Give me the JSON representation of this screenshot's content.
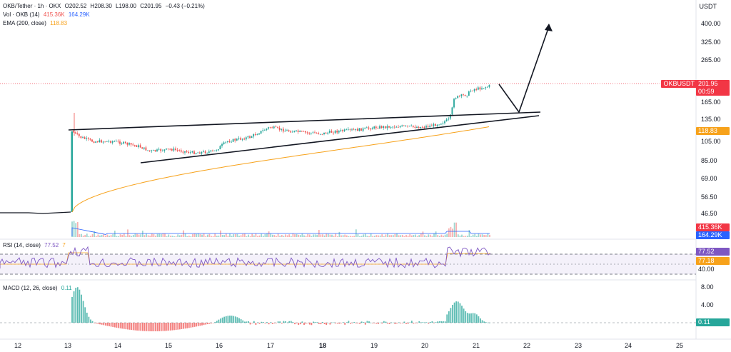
{
  "symbol": {
    "name": "OKB/Tether · 1h · OKX",
    "open_label": "O",
    "open": "202.52",
    "high_label": "H",
    "high": "208.30",
    "low_label": "L",
    "low": "198.00",
    "close_label": "C",
    "close": "201.95",
    "change": "−0.43 (−0.21%)"
  },
  "volume": {
    "label": "Vol · OKB (14)",
    "value1": "415.36K",
    "value2": "164.29K"
  },
  "ema": {
    "label": "EMA (200, close)",
    "value": "118.83"
  },
  "rsi": {
    "label": "RSI (14, close)",
    "value": "77.52",
    "value2": "7"
  },
  "macd": {
    "label": "MACD (12, 26, close)",
    "value": "0.11"
  },
  "currency": "USDT",
  "price_axis": [
    "400.00",
    "325.00",
    "265.00",
    "165.00",
    "135.00",
    "105.00",
    "85.00",
    "69.00",
    "56.50",
    "46.50"
  ],
  "price_tag": {
    "symbol": "OKBUSDT",
    "price": "201.95",
    "countdown": "00:59"
  },
  "ema_tag": "118.83",
  "vol_tags": [
    "415.36K",
    "164.29K"
  ],
  "rsi_axis_tags": [
    "77.52",
    "77.18",
    "40.00"
  ],
  "macd_axis": [
    "8.00",
    "4.00"
  ],
  "macd_tag": "0.11",
  "time_axis": [
    "12",
    "13",
    "14",
    "15",
    "16",
    "17",
    "18",
    "19",
    "20",
    "21",
    "22",
    "23",
    "24",
    "25"
  ],
  "colors": {
    "up": "#26a69a",
    "down": "#ef5350",
    "ema": "#f7a21b",
    "rsi": "#7e57c2",
    "tag_red": "#f23645",
    "tag_blue": "#2962ff",
    "tag_orange": "#f7a21b"
  }
}
